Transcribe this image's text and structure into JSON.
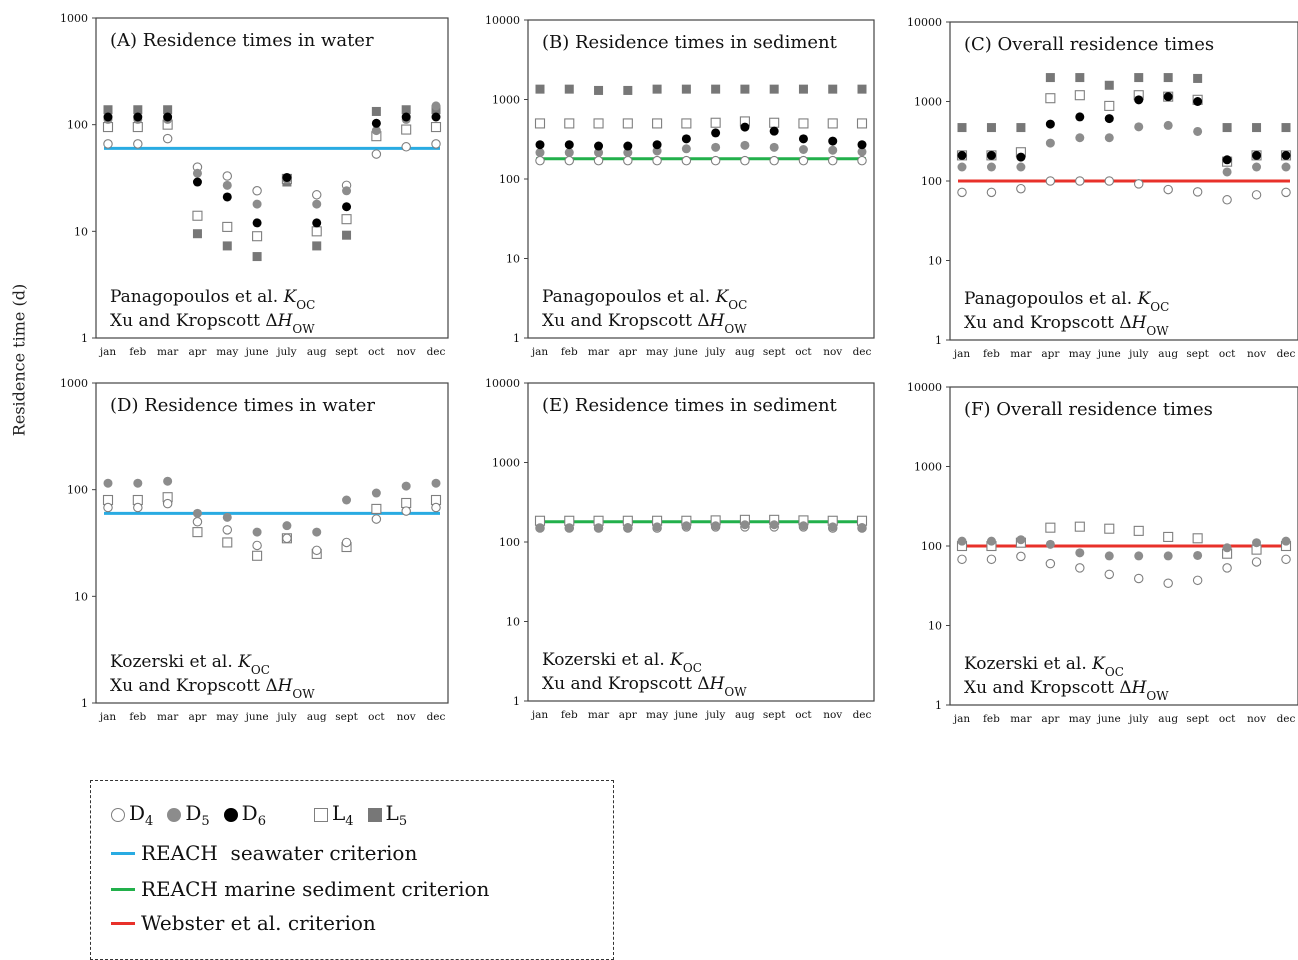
{
  "figure": {
    "y_axis_label": "Residence time (d)",
    "legend": {
      "markers": [
        {
          "label": "D4",
          "base": "D",
          "sub": "4",
          "marker": "circle-open"
        },
        {
          "label": "D5",
          "base": "D",
          "sub": "5",
          "marker": "circle-gray"
        },
        {
          "label": "D6",
          "base": "D",
          "sub": "6",
          "marker": "circle-black"
        },
        {
          "label": "L4",
          "base": "L",
          "sub": "4",
          "marker": "square-open"
        },
        {
          "label": "L5",
          "base": "L",
          "sub": "5",
          "marker": "square-gray"
        }
      ],
      "lines": [
        {
          "label": "REACH  seawater criterion",
          "color": "#29abe2"
        },
        {
          "label": "REACH marine sediment criterion",
          "color": "#22b04b"
        },
        {
          "label": "Webster et al. criterion",
          "color": "#e8312a"
        }
      ]
    },
    "colors": {
      "circle-open": "#7f7f7f",
      "circle-gray": "#8c8c8c",
      "circle-black": "#000000",
      "square-open": "#7f7f7f",
      "square-gray": "#777777"
    }
  },
  "chart_data": [
    {
      "type": "scatter",
      "title": "(A) Residence times in water",
      "notes": [
        {
          "pre": "Panagopoulos et al. ",
          "italic": "K",
          "sub": "OC"
        },
        {
          "pre": "Xu and Kropscott Δ",
          "italic": "H",
          "sub": "OW"
        }
      ],
      "y_scale": "log",
      "ylim": [
        1,
        1000
      ],
      "y_ticks": [
        "1",
        "10",
        "100",
        "1000"
      ],
      "categories": [
        "jan",
        "feb",
        "mar",
        "apr",
        "may",
        "june",
        "july",
        "aug",
        "sept",
        "oct",
        "nov",
        "dec"
      ],
      "series": [
        {
          "name": "D4",
          "marker": "circle-open",
          "values": [
            66,
            66,
            74,
            40,
            33,
            24,
            31,
            22,
            27,
            53,
            62,
            66
          ]
        },
        {
          "name": "D5",
          "marker": "circle-gray",
          "values": [
            112,
            112,
            112,
            35,
            27,
            18,
            31,
            18,
            24,
            88,
            112,
            150
          ]
        },
        {
          "name": "D6",
          "marker": "circle-black",
          "values": [
            118,
            118,
            118,
            29,
            21,
            12,
            32,
            12,
            17,
            103,
            118,
            118
          ]
        },
        {
          "name": "L4",
          "marker": "square-open",
          "values": [
            95,
            95,
            100,
            14,
            11,
            9,
            31,
            10,
            13,
            78,
            90,
            95
          ]
        },
        {
          "name": "L5",
          "marker": "square-gray",
          "values": [
            138,
            138,
            138,
            9.5,
            7.3,
            5.8,
            29,
            7.3,
            9.2,
            133,
            138,
            138
          ]
        }
      ],
      "criterion": {
        "value": 60,
        "color": "#29abe2"
      }
    },
    {
      "type": "scatter",
      "title": "(B) Residence times in sediment",
      "notes": [
        {
          "pre": "Panagopoulos et al. ",
          "italic": "K",
          "sub": "OC"
        },
        {
          "pre": "Xu and Kropscott Δ",
          "italic": "H",
          "sub": "OW"
        }
      ],
      "y_scale": "log",
      "ylim": [
        1,
        10000
      ],
      "y_ticks": [
        "1",
        "10",
        "100",
        "1000",
        "10000"
      ],
      "categories": [
        "jan",
        "feb",
        "mar",
        "apr",
        "may",
        "june",
        "july",
        "aug",
        "sept",
        "oct",
        "nov",
        "dec"
      ],
      "series": [
        {
          "name": "D4",
          "marker": "circle-open",
          "values": [
            170,
            170,
            170,
            170,
            170,
            170,
            170,
            170,
            170,
            170,
            170,
            170
          ]
        },
        {
          "name": "D5",
          "marker": "circle-gray",
          "values": [
            215,
            215,
            215,
            215,
            225,
            240,
            250,
            265,
            250,
            235,
            230,
            220
          ]
        },
        {
          "name": "D6",
          "marker": "circle-black",
          "values": [
            270,
            270,
            260,
            260,
            270,
            320,
            380,
            450,
            400,
            320,
            300,
            270
          ]
        },
        {
          "name": "L4",
          "marker": "square-open",
          "values": [
            500,
            500,
            500,
            500,
            500,
            500,
            510,
            530,
            510,
            500,
            500,
            500
          ]
        },
        {
          "name": "L5",
          "marker": "square-gray",
          "values": [
            1350,
            1350,
            1300,
            1300,
            1350,
            1350,
            1350,
            1350,
            1350,
            1350,
            1350,
            1350
          ]
        }
      ],
      "criterion": {
        "value": 180,
        "color": "#22b04b"
      }
    },
    {
      "type": "scatter",
      "title": "(C) Overall residence times",
      "notes": [
        {
          "pre": "Panagopoulos et al. ",
          "italic": "K",
          "sub": "OC"
        },
        {
          "pre": "Xu and Kropscott Δ",
          "italic": "H",
          "sub": "OW"
        }
      ],
      "y_scale": "log",
      "ylim": [
        1,
        10000
      ],
      "y_ticks": [
        "1",
        "10",
        "100",
        "1000",
        "10000"
      ],
      "categories": [
        "jan",
        "feb",
        "mar",
        "apr",
        "may",
        "june",
        "july",
        "aug",
        "sept",
        "oct",
        "nov",
        "dec"
      ],
      "series": [
        {
          "name": "D4",
          "marker": "circle-open",
          "values": [
            72,
            72,
            80,
            100,
            100,
            100,
            92,
            78,
            73,
            58,
            67,
            72
          ]
        },
        {
          "name": "D5",
          "marker": "circle-gray",
          "values": [
            150,
            150,
            150,
            300,
            350,
            350,
            480,
            500,
            420,
            130,
            150,
            150
          ]
        },
        {
          "name": "D6",
          "marker": "circle-black",
          "values": [
            210,
            210,
            200,
            520,
            640,
            610,
            1050,
            1150,
            1000,
            185,
            210,
            210
          ]
        },
        {
          "name": "L4",
          "marker": "square-open",
          "values": [
            210,
            210,
            230,
            1100,
            1200,
            880,
            1200,
            1150,
            1050,
            175,
            210,
            210
          ]
        },
        {
          "name": "L5",
          "marker": "square-gray",
          "values": [
            470,
            470,
            470,
            2000,
            2000,
            1600,
            2000,
            2000,
            1950,
            470,
            470,
            470
          ]
        }
      ],
      "criterion": {
        "value": 100,
        "color": "#e8312a"
      }
    },
    {
      "type": "scatter",
      "title": "(D) Residence times in water",
      "notes": [
        {
          "pre": "Kozerski et al. ",
          "italic": "K",
          "sub": "OC"
        },
        {
          "pre": "Xu and Kropscott Δ",
          "italic": "H",
          "sub": "OW"
        }
      ],
      "y_scale": "log",
      "ylim": [
        1,
        1000
      ],
      "y_ticks": [
        "1",
        "10",
        "100",
        "1000"
      ],
      "categories": [
        "jan",
        "feb",
        "mar",
        "apr",
        "may",
        "june",
        "july",
        "aug",
        "sept",
        "oct",
        "nov",
        "dec"
      ],
      "series": [
        {
          "name": "D4",
          "marker": "circle-open",
          "values": [
            68,
            68,
            74,
            50,
            42,
            30,
            35,
            27,
            32,
            53,
            63,
            68
          ]
        },
        {
          "name": "D5",
          "marker": "circle-gray",
          "values": [
            115,
            115,
            120,
            60,
            55,
            40,
            46,
            40,
            80,
            93,
            108,
            115
          ]
        },
        {
          "name": "L4",
          "marker": "square-open",
          "values": [
            80,
            80,
            85,
            40,
            32,
            24,
            35,
            25,
            29,
            66,
            75,
            80
          ]
        }
      ],
      "criterion": {
        "value": 60,
        "color": "#29abe2"
      }
    },
    {
      "type": "scatter",
      "title": "(E) Residence times in sediment",
      "notes": [
        {
          "pre": "Kozerski et al. ",
          "italic": "K",
          "sub": "OC"
        },
        {
          "pre": "Xu and Kropscott Δ",
          "italic": "H",
          "sub": "OW"
        }
      ],
      "y_scale": "log",
      "ylim": [
        1,
        10000
      ],
      "y_ticks": [
        "1",
        "10",
        "100",
        "1000",
        "10000"
      ],
      "categories": [
        "jan",
        "feb",
        "mar",
        "apr",
        "may",
        "june",
        "july",
        "aug",
        "sept",
        "oct",
        "nov",
        "dec"
      ],
      "series": [
        {
          "name": "D4",
          "marker": "circle-open",
          "values": [
            150,
            150,
            150,
            150,
            150,
            155,
            155,
            155,
            155,
            155,
            150,
            150
          ]
        },
        {
          "name": "D5",
          "marker": "circle-gray",
          "values": [
            150,
            150,
            150,
            152,
            155,
            160,
            160,
            165,
            165,
            160,
            155,
            152
          ]
        },
        {
          "name": "L4",
          "marker": "square-open",
          "values": [
            185,
            185,
            185,
            185,
            185,
            185,
            187,
            190,
            190,
            187,
            185,
            185
          ]
        }
      ],
      "criterion": {
        "value": 180,
        "color": "#22b04b"
      }
    },
    {
      "type": "scatter",
      "title": "(F) Overall residence times",
      "notes": [
        {
          "pre": "Kozerski et al. ",
          "italic": "K",
          "sub": "OC"
        },
        {
          "pre": "Xu and Kropscott Δ",
          "italic": "H",
          "sub": "OW"
        }
      ],
      "y_scale": "log",
      "ylim": [
        1,
        10000
      ],
      "y_ticks": [
        "1",
        "10",
        "100",
        "1000",
        "10000"
      ],
      "categories": [
        "jan",
        "feb",
        "mar",
        "apr",
        "may",
        "june",
        "july",
        "aug",
        "sept",
        "oct",
        "nov",
        "dec"
      ],
      "series": [
        {
          "name": "D4",
          "marker": "circle-open",
          "values": [
            68,
            68,
            74,
            60,
            53,
            44,
            39,
            34,
            37,
            53,
            63,
            68
          ]
        },
        {
          "name": "D5",
          "marker": "circle-gray",
          "values": [
            115,
            115,
            120,
            105,
            82,
            75,
            75,
            75,
            76,
            95,
            110,
            115
          ]
        },
        {
          "name": "L4",
          "marker": "square-open",
          "values": [
            100,
            100,
            110,
            170,
            175,
            165,
            155,
            130,
            125,
            80,
            90,
            100
          ]
        }
      ],
      "criterion": {
        "value": 100,
        "color": "#e8312a"
      }
    }
  ]
}
